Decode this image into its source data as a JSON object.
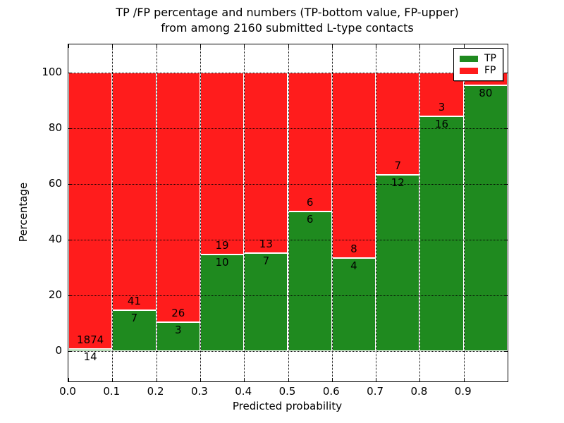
{
  "chart_data": {
    "type": "bar",
    "variant": "stacked-percentage-histogram",
    "title_line1": "TP /FP percentage and numbers (TP-bottom value, FP-upper)",
    "title_line2": "from among 2160 submitted L-type contacts",
    "xlabel": "Predicted probability",
    "ylabel": "Percentage",
    "x_tick_labels": [
      "0.0",
      "0.1",
      "0.2",
      "0.3",
      "0.4",
      "0.5",
      "0.6",
      "0.7",
      "0.8",
      "0.9"
    ],
    "x_tick_positions": [
      0.0,
      0.1,
      0.2,
      0.3,
      0.4,
      0.5,
      0.6,
      0.7,
      0.8,
      0.9
    ],
    "y_tick_labels": [
      "0",
      "20",
      "40",
      "60",
      "80",
      "100"
    ],
    "y_tick_positions": [
      0,
      20,
      40,
      60,
      80,
      100
    ],
    "xlim": [
      0.0,
      1.0
    ],
    "ylim": [
      -11,
      110
    ],
    "grid_style": "dotted",
    "bin_width": 0.1,
    "total_contacts": 2160,
    "colors": {
      "tp": "#1f8a1f",
      "fp": "#ff1c1c",
      "bar_edge": "#ffffff",
      "grid": "#000000"
    },
    "legend": {
      "position": "upper-right",
      "entries": [
        {
          "label": "TP",
          "color": "#1f8a1f"
        },
        {
          "label": "FP",
          "color": "#ff1c1c"
        }
      ]
    },
    "bars": [
      {
        "bin_start": 0.0,
        "bin_end": 0.1,
        "tp": 14,
        "fp": 1874,
        "tp_pct": 0.74,
        "tp_label": "14",
        "fp_label": "1874"
      },
      {
        "bin_start": 0.1,
        "bin_end": 0.2,
        "tp": 7,
        "fp": 41,
        "tp_pct": 14.58,
        "tp_label": "7",
        "fp_label": "41"
      },
      {
        "bin_start": 0.2,
        "bin_end": 0.3,
        "tp": 3,
        "fp": 26,
        "tp_pct": 10.34,
        "tp_label": "3",
        "fp_label": "26"
      },
      {
        "bin_start": 0.3,
        "bin_end": 0.4,
        "tp": 10,
        "fp": 19,
        "tp_pct": 34.48,
        "tp_label": "10",
        "fp_label": "19"
      },
      {
        "bin_start": 0.4,
        "bin_end": 0.5,
        "tp": 7,
        "fp": 13,
        "tp_pct": 35.0,
        "tp_label": "7",
        "fp_label": "13"
      },
      {
        "bin_start": 0.5,
        "bin_end": 0.6,
        "tp": 6,
        "fp": 6,
        "tp_pct": 50.0,
        "tp_label": "6",
        "fp_label": "6"
      },
      {
        "bin_start": 0.6,
        "bin_end": 0.7,
        "tp": 4,
        "fp": 8,
        "tp_pct": 33.33,
        "tp_label": "4",
        "fp_label": "8"
      },
      {
        "bin_start": 0.7,
        "bin_end": 0.8,
        "tp": 12,
        "fp": 7,
        "tp_pct": 63.16,
        "tp_label": "12",
        "fp_label": "7"
      },
      {
        "bin_start": 0.8,
        "bin_end": 0.9,
        "tp": 16,
        "fp": 3,
        "tp_pct": 84.21,
        "tp_label": "16",
        "fp_label": "3"
      },
      {
        "bin_start": 0.9,
        "bin_end": 1.0,
        "tp": 80,
        "tp_pct": 95.24,
        "tp_label": "80",
        "fp_label": ""
      }
    ]
  }
}
